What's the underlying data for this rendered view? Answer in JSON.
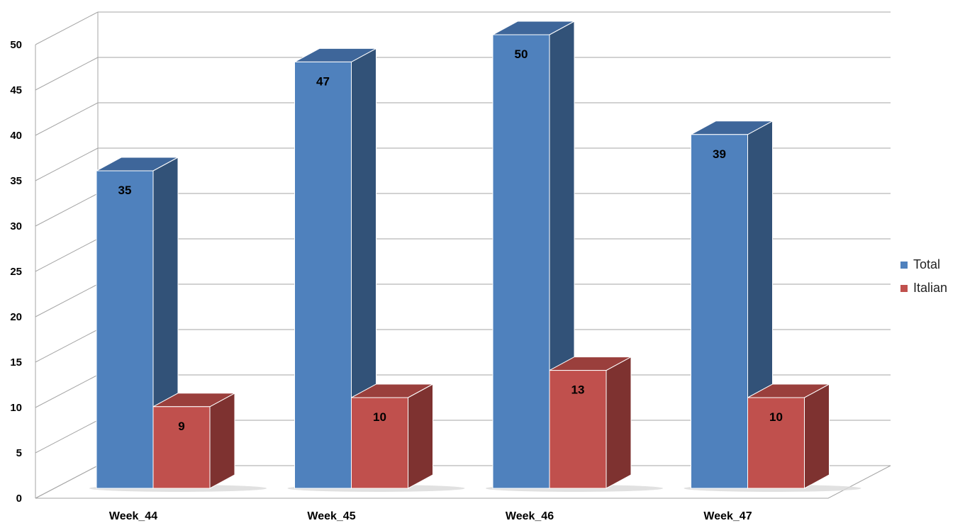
{
  "chart_data": {
    "type": "bar",
    "categories": [
      "Week_44",
      "Week_45",
      "Week_46",
      "Week_47"
    ],
    "series": [
      {
        "name": "Total",
        "values": [
          35,
          47,
          50,
          39
        ],
        "color": "#4F81BD",
        "side_color": "#325278",
        "top_color": "#3E669A"
      },
      {
        "name": "Italian",
        "values": [
          9,
          10,
          13,
          10
        ],
        "color": "#C0504D",
        "side_color": "#7E3230",
        "top_color": "#9A3F3C"
      }
    ],
    "yticks": [
      0,
      5,
      10,
      15,
      20,
      25,
      30,
      35,
      40,
      45,
      50
    ],
    "ylim": [
      0,
      50
    ],
    "grid": true,
    "legend_position": "right",
    "chart_style": "3d-clustered-column",
    "data_labels": true
  }
}
